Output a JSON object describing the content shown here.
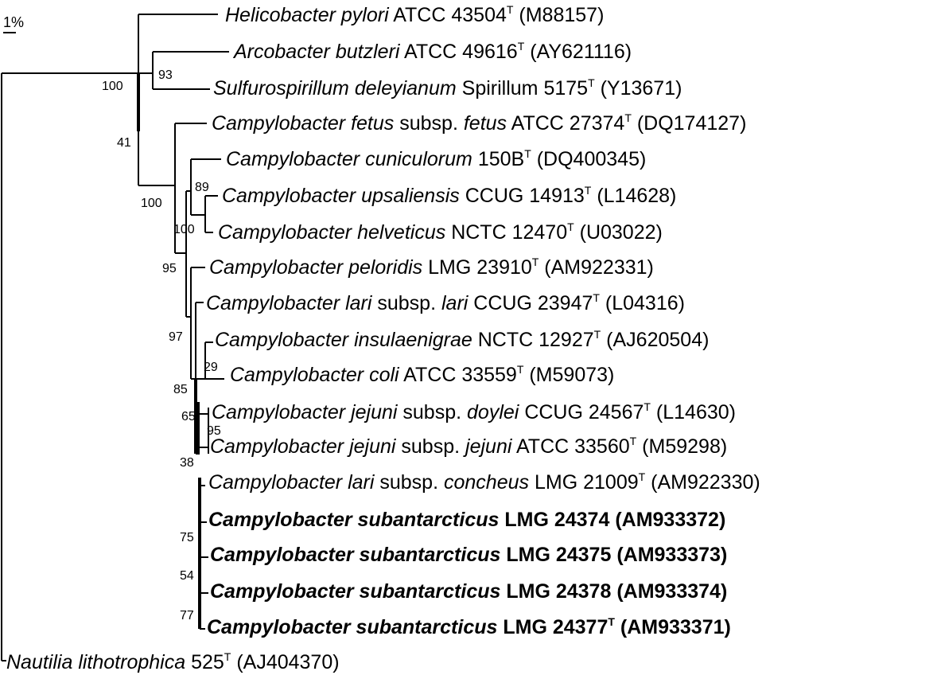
{
  "scale_bar": "1%",
  "taxa": [
    {
      "genus": "Helicobacter pylori",
      "strain": "ATCC 43504",
      "type": "T",
      "acc": "(M88157)"
    },
    {
      "genus": "Arcobacter butzleri",
      "strain": "ATCC 49616",
      "type": "T",
      "acc": "(AY621116)"
    },
    {
      "genus": "Sulfurospirillum deleyianum",
      "strain": "Spirillum 5175",
      "type": "T",
      "acc": "(Y13671)"
    },
    {
      "genus": "Campylobacter fetus",
      "sub1": "subsp.",
      "sp2": "fetus",
      "strain": "ATCC 27374",
      "type": "T",
      "acc": "(DQ174127)"
    },
    {
      "genus": "Campylobacter cuniculorum",
      "strain": "150B",
      "type": "T",
      "acc": "(DQ400345)"
    },
    {
      "genus": "Campylobacter upsaliensis",
      "strain": "CCUG 14913",
      "type": "T",
      "acc": "(L14628)"
    },
    {
      "genus": "Campylobacter helveticus",
      "strain": "NCTC 12470",
      "type": "T",
      "acc": "(U03022)"
    },
    {
      "genus": "Campylobacter peloridis",
      "strain": "LMG 23910",
      "type": "T",
      "acc": "(AM922331)"
    },
    {
      "genus": "Campylobacter lari",
      "sub1": "subsp.",
      "sp2": "lari",
      "strain": "CCUG 23947",
      "type": "T",
      "acc": "(L04316)"
    },
    {
      "genus": "Campylobacter insulaenigrae",
      "strain": "NCTC 12927",
      "type": "T",
      "acc": "(AJ620504)"
    },
    {
      "genus": "Campylobacter coli",
      "strain": "ATCC 33559",
      "type": "T",
      "acc": "(M59073)"
    },
    {
      "genus": "Campylobacter jejuni",
      "sub1": "subsp.",
      "sp2": "doylei",
      "strain": "CCUG 24567",
      "type": "T",
      "acc": "(L14630)"
    },
    {
      "genus": "Campylobacter jejuni",
      "sub1": "subsp.",
      "sp2": "jejuni",
      "strain": "ATCC 33560",
      "type": "T",
      "acc": "(M59298)"
    },
    {
      "genus": "Campylobacter lari",
      "sub1": "subsp.",
      "sp2": "concheus",
      "strain": "LMG 21009",
      "type": "T",
      "acc": "(AM922330)"
    },
    {
      "genus": "Campylobacter subantarcticus",
      "strain": "LMG 24374",
      "type": "",
      "acc": "(AM933372)"
    },
    {
      "genus": "Campylobacter subantarcticus",
      "strain": "LMG 24375",
      "type": "",
      "acc": "(AM933373)"
    },
    {
      "genus": "Campylobacter subantarcticus",
      "strain": "LMG 24378",
      "type": "",
      "acc": "(AM933374)"
    },
    {
      "genus": "Campylobacter subantarcticus",
      "strain": "LMG 24377",
      "type": "T",
      "acc": "(AM933371)"
    },
    {
      "genus": "Nautilia lithotrophica",
      "strain": "525",
      "type": "T",
      "acc": "(AJ404370)"
    }
  ],
  "bootstrap": [
    "100",
    "93",
    "41",
    "100",
    "89",
    "100",
    "95",
    "97",
    "29",
    "85",
    "65",
    "95",
    "38",
    "75",
    "54",
    "77"
  ]
}
